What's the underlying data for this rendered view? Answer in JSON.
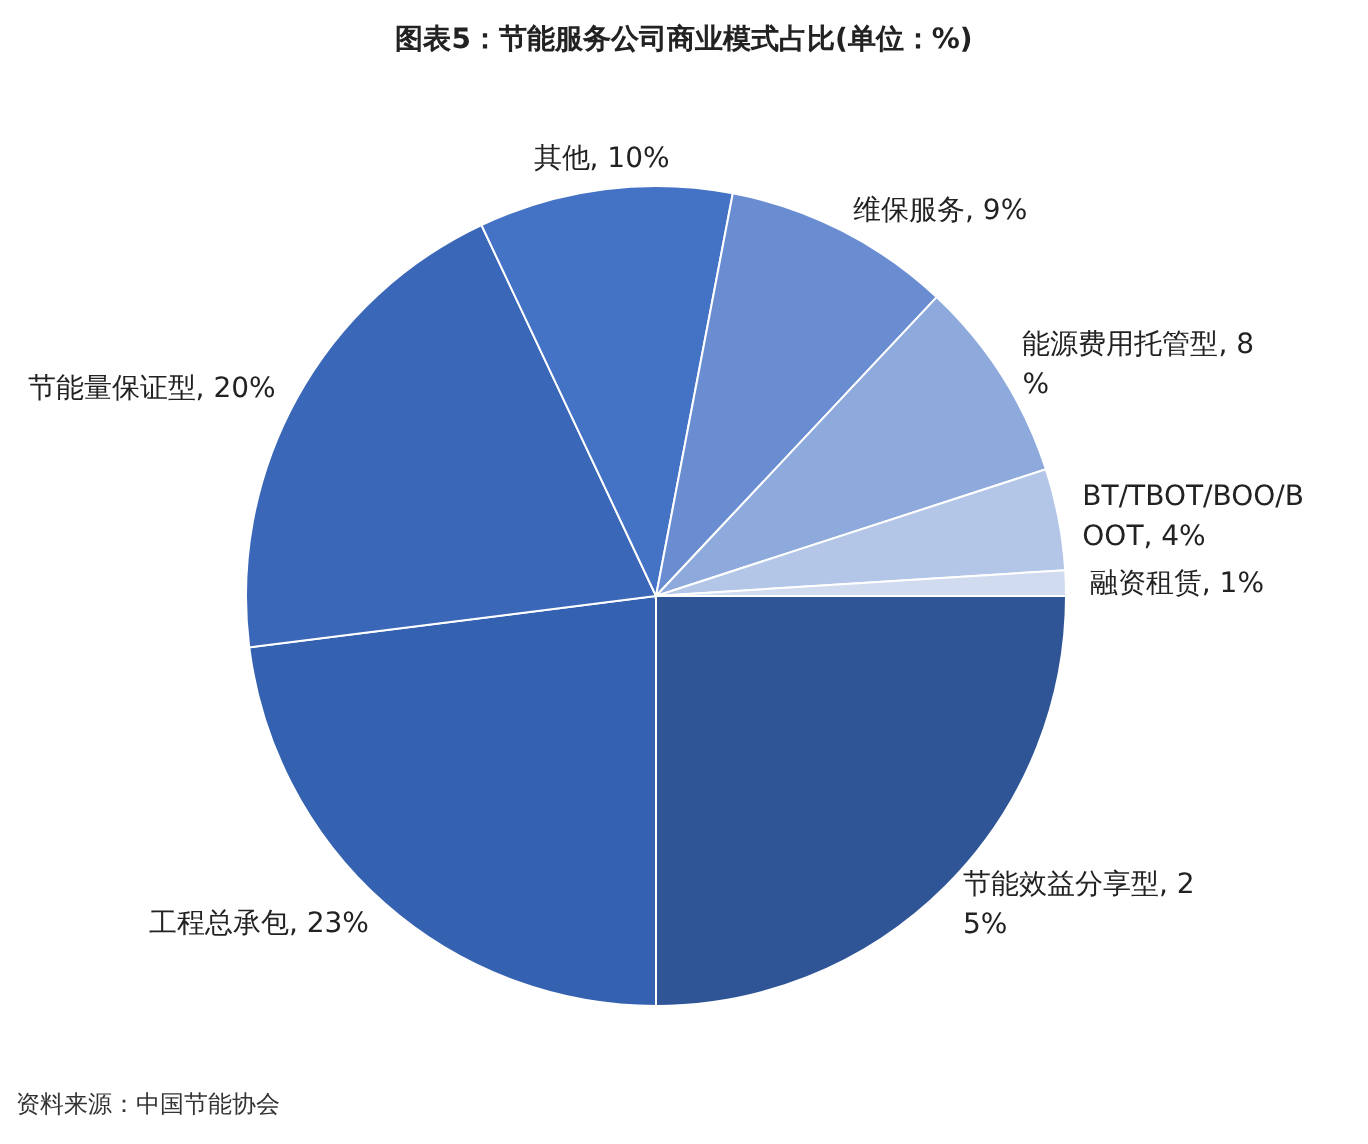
{
  "chart_data": {
    "type": "pie",
    "title": "图表5：节能服务公司商业模式占比(单位：%)",
    "categories": [
      "节能效益分享型",
      "工程总承包",
      "节能量保证型",
      "其他",
      "维保服务",
      "能源费用托管型",
      "BT/TBOT/BOO/BOOT",
      "融资租赁"
    ],
    "values": [
      25,
      23,
      20,
      10,
      9,
      8,
      4,
      1
    ],
    "value_labels": [
      "25%",
      "23%",
      "20%",
      "10%",
      "9%",
      "8%",
      "4%",
      "1%"
    ],
    "colors": [
      "#2f5597",
      "#3562b0",
      "#3a67b8",
      "#4472c4",
      "#6a8dd2",
      "#8eaadc",
      "#b4c6e7",
      "#d0dbf0"
    ],
    "annotations": [
      "资料来源：中国节能协会"
    ]
  }
}
